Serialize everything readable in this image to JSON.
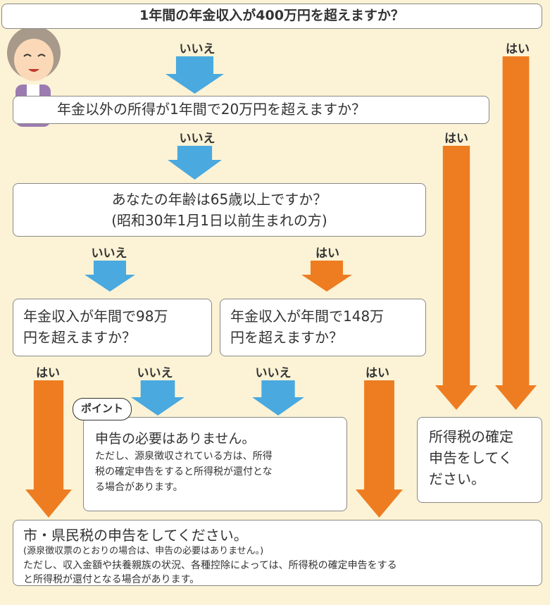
{
  "q1": {
    "text": "1年間の年金収入が400万円を超えますか？",
    "no": "いいえ",
    "yes": "はい"
  },
  "q2": {
    "text": "年金以外の所得が1年間で20万円を超えますか？",
    "no": "いいえ",
    "yes": "はい"
  },
  "q3": {
    "lines": [
      "あなたの年齢は65歳以上ですか？",
      "(昭和30年1月1日以前生まれの方)"
    ],
    "no": "いいえ",
    "yes": "はい"
  },
  "q4a": {
    "lines": [
      "年金収入が年間で98万",
      "円を超えますか？"
    ],
    "yes": "はい",
    "no": "いいえ"
  },
  "q4b": {
    "lines": [
      "年金収入が年間で148万",
      "円を超えますか？"
    ],
    "no": "いいえ",
    "yes": "はい"
  },
  "point": "ポイント",
  "no_filing": {
    "title": "申告の必要はありません。",
    "lines": [
      "ただし、源泉徴収されている方は、所得",
      "税の確定申告をすると所得税が還付とな",
      "る場合があります。"
    ]
  },
  "tax_return": {
    "lines": [
      "所得税の確定",
      "申告をしてく",
      "ださい。"
    ]
  },
  "resident_tax": {
    "title": "市・県民税の申告をしてください。",
    "lines": [
      "(源泉徴収票のとおりの場合は、申告の必要はありません。)",
      "ただし、収入金額や扶養親族の状況、各種控除によっては、所得税の確定申告をする",
      "と所得税が還付となる場合があります。"
    ]
  }
}
